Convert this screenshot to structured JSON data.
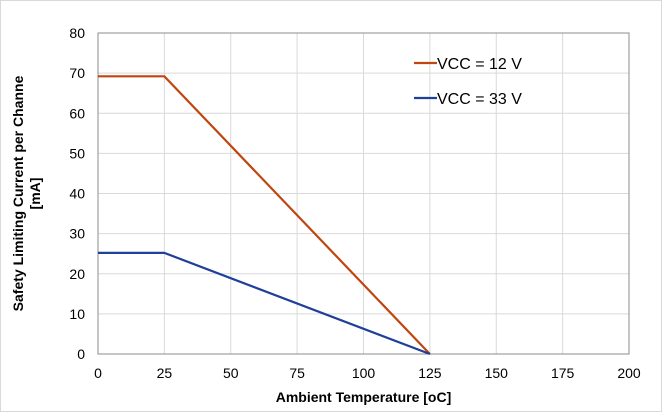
{
  "chart_data": {
    "type": "line",
    "title": "",
    "xlabel": "Ambient Temperature [oC]",
    "ylabel_lines": [
      "Safety Limiting Current per Channe",
      "[mA]"
    ],
    "xlim": [
      0,
      200
    ],
    "ylim": [
      0,
      80
    ],
    "x_ticks": [
      0,
      25,
      50,
      75,
      100,
      125,
      150,
      175,
      200
    ],
    "y_ticks": [
      0,
      10,
      20,
      30,
      40,
      50,
      60,
      70,
      80
    ],
    "x_tick_labels": [
      "0",
      "25",
      "50",
      "75",
      "100",
      "125",
      "150",
      "175",
      "200"
    ],
    "y_tick_labels": [
      "0",
      "10",
      "20",
      "30",
      "40",
      "50",
      "60",
      "70",
      "80"
    ],
    "grid": true,
    "legend_position": "top-right",
    "series": [
      {
        "name": "VCC = 12 V",
        "color": "#c0450f",
        "points": [
          [
            0,
            69.2
          ],
          [
            25,
            69.2
          ],
          [
            125,
            0
          ]
        ]
      },
      {
        "name": "VCC = 33 V",
        "color": "#1f3f99",
        "points": [
          [
            0,
            25.2
          ],
          [
            25,
            25.2
          ],
          [
            125,
            0
          ]
        ]
      }
    ]
  }
}
